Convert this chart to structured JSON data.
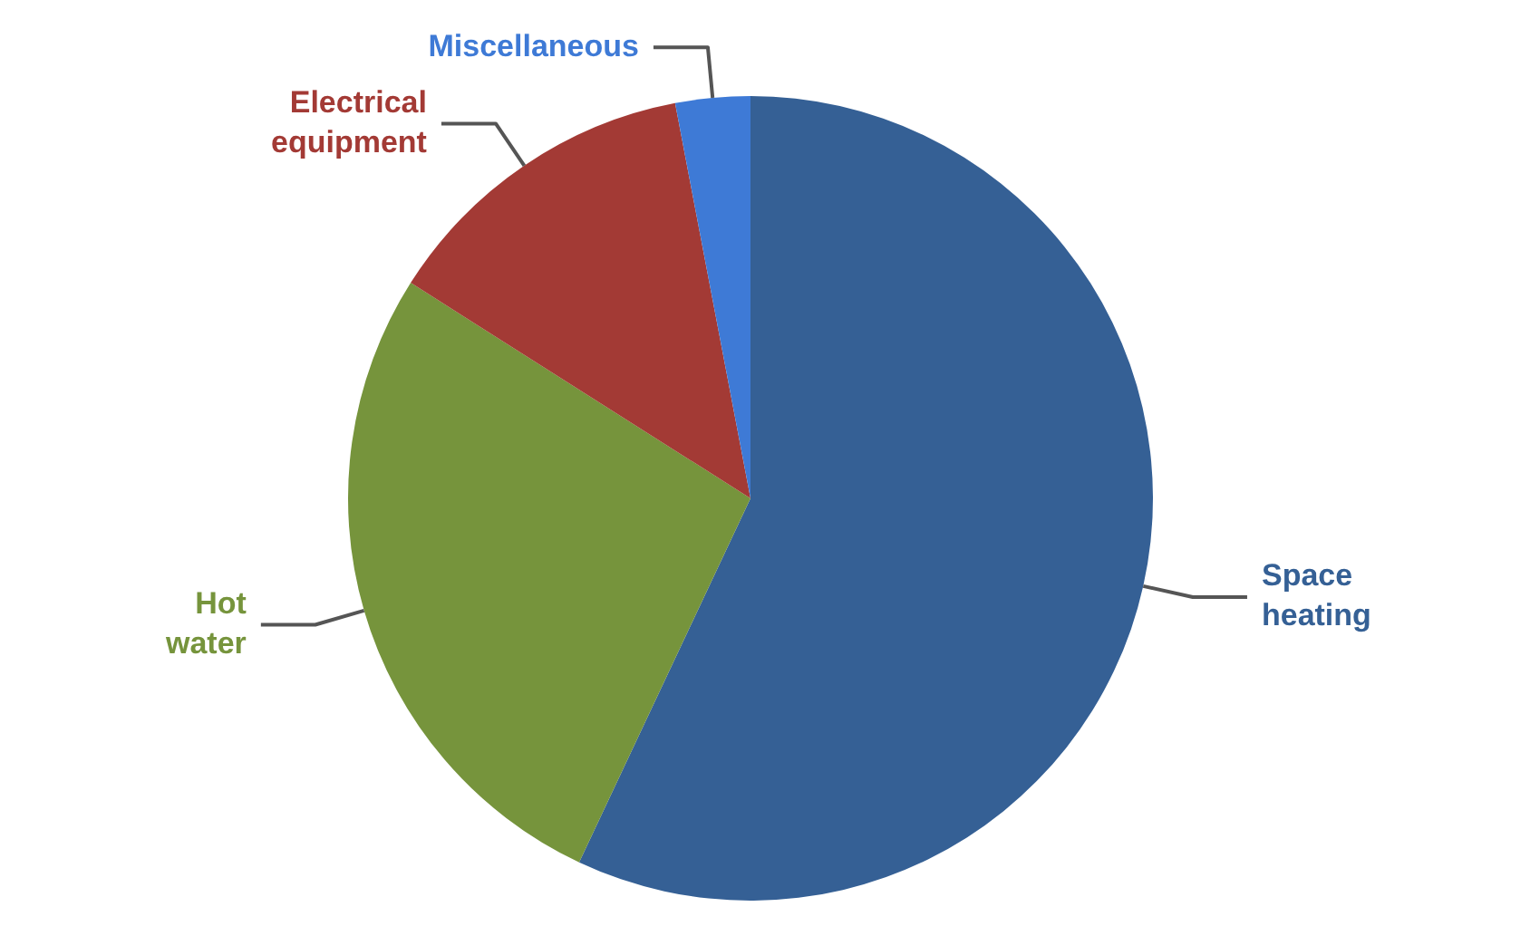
{
  "chart_data": {
    "type": "pie",
    "categories": [
      "Space heating",
      "Hot water",
      "Electrical equipment",
      "Miscellaneous"
    ],
    "values": [
      57,
      27,
      13,
      3
    ],
    "colors": [
      "#356095",
      "#76943c",
      "#a33a35",
      "#3e7ad6"
    ],
    "legend": false
  }
}
